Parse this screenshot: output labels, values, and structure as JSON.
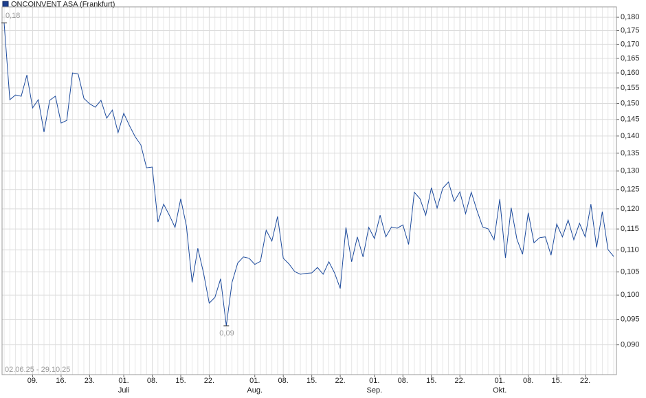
{
  "chart_data": {
    "type": "line",
    "title": "ONCOINVENT ASA (Frankfurt)",
    "range_label": "02.06.25 - 29.10.25",
    "color": "#1c4a9c",
    "log_scale": true,
    "grid": true,
    "values": [
      0.1779,
      0.1512,
      0.1527,
      0.1523,
      0.1593,
      0.1486,
      0.1512,
      0.1412,
      0.151,
      0.1523,
      0.1439,
      0.1447,
      0.16,
      0.1596,
      0.1516,
      0.1499,
      0.1488,
      0.151,
      0.1454,
      0.1479,
      0.141,
      0.1469,
      0.1431,
      0.1398,
      0.1374,
      0.1309,
      0.1311,
      0.1167,
      0.1212,
      0.1184,
      0.1154,
      0.1226,
      0.1157,
      0.1027,
      0.1104,
      0.1048,
      0.0983,
      0.0995,
      0.1035,
      0.0937,
      0.1027,
      0.107,
      0.1084,
      0.1081,
      0.1067,
      0.1074,
      0.1147,
      0.1121,
      0.1181,
      0.1081,
      0.1068,
      0.1051,
      0.1045,
      0.1047,
      0.1048,
      0.106,
      0.1045,
      0.1073,
      0.1048,
      0.1014,
      0.1154,
      0.1073,
      0.1131,
      0.1084,
      0.1154,
      0.1127,
      0.1184,
      0.1131,
      0.1155,
      0.1152,
      0.116,
      0.1113,
      0.1243,
      0.1226,
      0.1184,
      0.1255,
      0.1202,
      0.1254,
      0.127,
      0.1219,
      0.1244,
      0.1188,
      0.1243,
      0.1196,
      0.1155,
      0.115,
      0.1124,
      0.1225,
      0.1082,
      0.1203,
      0.1126,
      0.109,
      0.119,
      0.1117,
      0.1129,
      0.1131,
      0.1088,
      0.1162,
      0.1131,
      0.1172,
      0.1124,
      0.1164,
      0.1131,
      0.1212,
      0.1106,
      0.1193,
      0.1101,
      0.1085
    ],
    "value_labels": [
      "0,18",
      null,
      null,
      null,
      null,
      null,
      null,
      null,
      null,
      null,
      null,
      null,
      null,
      null,
      null,
      null,
      null,
      null,
      null,
      null,
      null,
      null,
      null,
      null,
      null,
      null,
      null,
      null,
      null,
      null,
      null,
      null,
      null,
      null,
      null,
      null,
      null,
      null,
      null,
      "0,09",
      null,
      null,
      null,
      null,
      null,
      null,
      null,
      null,
      null,
      null,
      null,
      null,
      null,
      null,
      null,
      null,
      null,
      null,
      null,
      null,
      null,
      null,
      null,
      null,
      null,
      null,
      null,
      null,
      null,
      null,
      null,
      null,
      null,
      null,
      null,
      null,
      null,
      null,
      null,
      null,
      null,
      null,
      null,
      null,
      null,
      null,
      null,
      null,
      null,
      null,
      null,
      null,
      null,
      null,
      null,
      null,
      null,
      null,
      null,
      null,
      null,
      null,
      null,
      null,
      null,
      null,
      null,
      null
    ],
    "ylim": [
      0.0845,
      0.184
    ],
    "yticks": [
      {
        "value": 0.09,
        "label": "0,090"
      },
      {
        "value": 0.095,
        "label": "0,095"
      },
      {
        "value": 0.1,
        "label": "0,100"
      },
      {
        "value": 0.105,
        "label": "0,105"
      },
      {
        "value": 0.11,
        "label": "0,110"
      },
      {
        "value": 0.115,
        "label": "0,115"
      },
      {
        "value": 0.12,
        "label": "0,120"
      },
      {
        "value": 0.125,
        "label": "0,125"
      },
      {
        "value": 0.13,
        "label": "0,130"
      },
      {
        "value": 0.135,
        "label": "0,135"
      },
      {
        "value": 0.14,
        "label": "0,140"
      },
      {
        "value": 0.145,
        "label": "0,145"
      },
      {
        "value": 0.15,
        "label": "0,150"
      },
      {
        "value": 0.155,
        "label": "0,155"
      },
      {
        "value": 0.16,
        "label": "0,160"
      },
      {
        "value": 0.165,
        "label": "0,165"
      },
      {
        "value": 0.17,
        "label": "0,170"
      },
      {
        "value": 0.175,
        "label": "0,175"
      },
      {
        "value": 0.18,
        "label": "0,180"
      }
    ],
    "xticks": [
      {
        "value": 5,
        "label": "09."
      },
      {
        "value": 10,
        "label": "16."
      },
      {
        "value": 15,
        "label": "23."
      },
      {
        "value": 21,
        "label": "01."
      },
      {
        "value": 26,
        "label": "08."
      },
      {
        "value": 31,
        "label": "15."
      },
      {
        "value": 36,
        "label": "22."
      },
      {
        "value": 44,
        "label": "01."
      },
      {
        "value": 49,
        "label": "08."
      },
      {
        "value": 54,
        "label": "15."
      },
      {
        "value": 59,
        "label": "22."
      },
      {
        "value": 65,
        "label": "01."
      },
      {
        "value": 70,
        "label": "08."
      },
      {
        "value": 75,
        "label": "15."
      },
      {
        "value": 80,
        "label": "22."
      },
      {
        "value": 87,
        "label": "01."
      },
      {
        "value": 92,
        "label": "08."
      },
      {
        "value": 97,
        "label": "15."
      },
      {
        "value": 102,
        "label": "22."
      }
    ],
    "month_labels": [
      {
        "value": 21,
        "label": "Juli"
      },
      {
        "value": 44,
        "label": "Aug."
      },
      {
        "value": 65,
        "label": "Sep."
      },
      {
        "value": 87,
        "label": "Okt."
      }
    ]
  }
}
